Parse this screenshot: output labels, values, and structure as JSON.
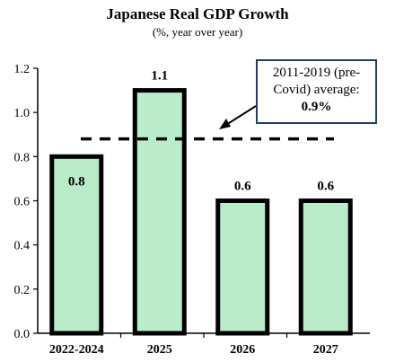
{
  "chart_data": {
    "type": "bar",
    "title": "Japanese Real GDP Growth",
    "subtitle": "(%, year over year)",
    "categories": [
      "2022-2024",
      "2025",
      "2026",
      "2027"
    ],
    "values": [
      0.8,
      1.1,
      0.6,
      0.6
    ],
    "data_labels": [
      "0.8",
      "1.1",
      "0.6",
      "0.6"
    ],
    "ylim": [
      0,
      1.2
    ],
    "yticks": [
      "0.0",
      "0.2",
      "0.4",
      "0.6",
      "0.8",
      "1.0",
      "1.2"
    ],
    "grid": false,
    "bar_fill": "#b9ecc9",
    "bar_edge": "#000000",
    "reference_line": {
      "value": 0.88,
      "style": "dashed"
    },
    "annotation": {
      "line1": "2011-2019 (pre-",
      "line2": "Covid) average:",
      "value": "0.9%",
      "border_color": "#1f3d66"
    }
  }
}
